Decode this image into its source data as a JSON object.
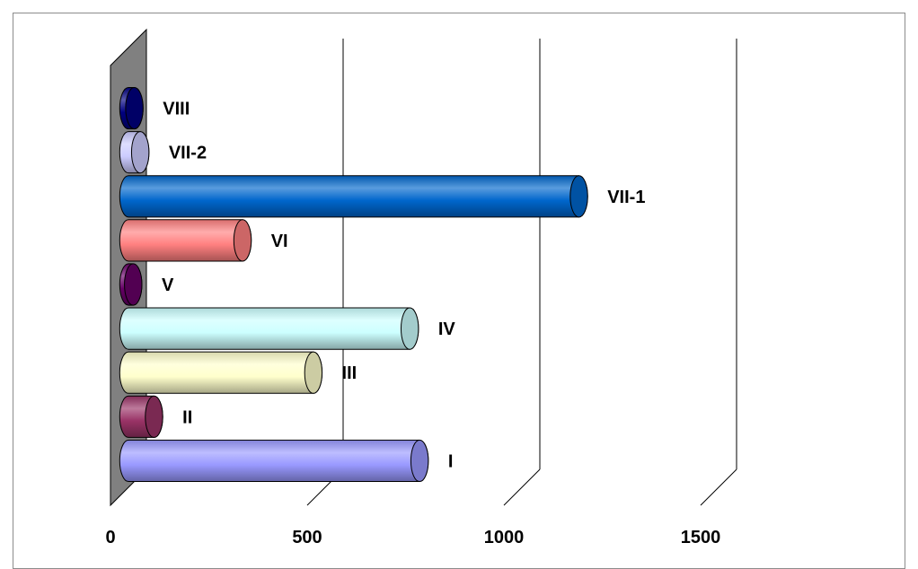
{
  "chart_data": {
    "type": "bar",
    "orientation": "horizontal",
    "style": "3d-cylinder",
    "title": "",
    "xlabel": "",
    "ylabel": "",
    "xlim": [
      0,
      1500
    ],
    "xticks": [
      0,
      500,
      1000,
      1500
    ],
    "xtick_labels": [
      "0",
      "500",
      "1000",
      "1500"
    ],
    "grid": true,
    "legend": "none",
    "categories": [
      "I",
      "II",
      "III",
      "IV",
      "V",
      "VI",
      "VII-1",
      "VII-2",
      "VIII"
    ],
    "values": [
      740,
      65,
      470,
      715,
      12,
      290,
      1145,
      30,
      15
    ],
    "colors": [
      "#9999ff",
      "#993366",
      "#ffffcc",
      "#ccffff",
      "#660066",
      "#ff8080",
      "#0066cc",
      "#ccccff",
      "#000080"
    ],
    "wall_color": "#808080"
  }
}
